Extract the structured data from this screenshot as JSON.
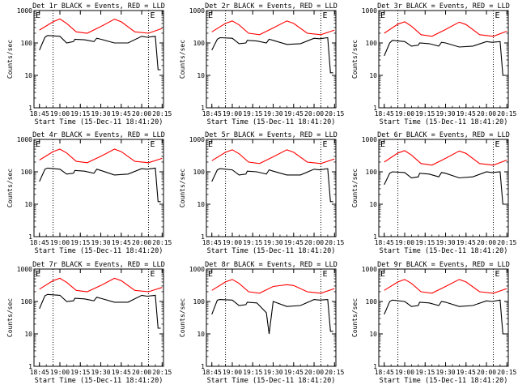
{
  "chart_data": {
    "type": "line",
    "layout": "3x3 small multiples",
    "yscale": "log",
    "ylim": [
      1,
      1000
    ],
    "y_ticks": [
      "1",
      "10",
      "100",
      "1000"
    ],
    "x_ticks": [
      "18:45",
      "19:00",
      "19:15",
      "19:30",
      "19:45",
      "20:00",
      "20:15"
    ],
    "xlabel": "Start Time (15-Dec-11 18:41:20)",
    "ylabel": "Counts/sec",
    "corner_labels": [
      "E",
      "E"
    ],
    "colors": {
      "events": "#000000",
      "lld": "#ff0000"
    },
    "series_names": [
      "Events",
      "LLD"
    ],
    "panels": [
      {
        "title": "Det 1r BLACK = Events, RED = LLD",
        "events": {
          "x": [
            "18:45",
            "18:49",
            "18:51",
            "19:00",
            "19:05",
            "19:10",
            "19:11",
            "19:18",
            "19:25",
            "19:27",
            "19:30",
            "19:40",
            "19:50",
            "20:00",
            "20:04",
            "20:10",
            "20:12",
            "20:14"
          ],
          "y": [
            60,
            150,
            170,
            160,
            100,
            110,
            130,
            125,
            110,
            140,
            130,
            100,
            100,
            160,
            150,
            160,
            15,
            15
          ]
        },
        "lld": {
          "x": [
            "18:45",
            "18:55",
            "19:00",
            "19:05",
            "19:12",
            "19:20",
            "19:30",
            "19:40",
            "19:45",
            "19:55",
            "20:05",
            "20:15"
          ],
          "y": [
            250,
            450,
            550,
            400,
            220,
            200,
            320,
            540,
            450,
            220,
            200,
            280
          ]
        }
      },
      {
        "title": "Det 2r BLACK = Events, RED = LLD",
        "events": {
          "x": [
            "18:45",
            "18:49",
            "18:51",
            "19:00",
            "19:05",
            "19:10",
            "19:11",
            "19:18",
            "19:25",
            "19:27",
            "19:30",
            "19:40",
            "19:50",
            "20:00",
            "20:04",
            "20:10",
            "20:12",
            "20:14"
          ],
          "y": [
            60,
            130,
            145,
            140,
            95,
            100,
            120,
            115,
            100,
            130,
            120,
            90,
            95,
            140,
            135,
            145,
            12,
            12
          ]
        },
        "lld": {
          "x": [
            "18:45",
            "18:55",
            "19:00",
            "19:05",
            "19:12",
            "19:20",
            "19:30",
            "19:40",
            "19:45",
            "19:55",
            "20:05",
            "20:15"
          ],
          "y": [
            220,
            400,
            480,
            360,
            200,
            180,
            290,
            480,
            400,
            200,
            180,
            250
          ]
        }
      },
      {
        "title": "Det 3r BLACK = Events, RED = LLD",
        "events": {
          "x": [
            "18:45",
            "18:49",
            "18:51",
            "19:00",
            "19:05",
            "19:10",
            "19:11",
            "19:18",
            "19:25",
            "19:27",
            "19:30",
            "19:40",
            "19:50",
            "20:00",
            "20:04",
            "20:10",
            "20:12",
            "20:14"
          ],
          "y": [
            40,
            100,
            120,
            110,
            80,
            85,
            100,
            95,
            80,
            105,
            100,
            75,
            80,
            110,
            105,
            110,
            10,
            10
          ]
        },
        "lld": {
          "x": [
            "18:45",
            "18:55",
            "19:00",
            "19:05",
            "19:12",
            "19:20",
            "19:30",
            "19:40",
            "19:45",
            "19:55",
            "20:05",
            "20:15"
          ],
          "y": [
            200,
            380,
            450,
            330,
            180,
            160,
            260,
            440,
            370,
            180,
            160,
            230
          ]
        }
      },
      {
        "title": "Det 4r BLACK = Events, RED = LLD",
        "events": {
          "x": [
            "18:45",
            "18:49",
            "18:51",
            "19:00",
            "19:05",
            "19:10",
            "19:11",
            "19:18",
            "19:25",
            "19:27",
            "19:30",
            "19:40",
            "19:50",
            "20:00",
            "20:04",
            "20:10",
            "20:12",
            "20:14"
          ],
          "y": [
            50,
            120,
            130,
            120,
            85,
            90,
            110,
            105,
            90,
            120,
            110,
            80,
            85,
            125,
            120,
            130,
            12,
            12
          ]
        },
        "lld": {
          "x": [
            "18:45",
            "18:55",
            "19:00",
            "19:05",
            "19:12",
            "19:20",
            "19:30",
            "19:40",
            "19:45",
            "19:55",
            "20:05",
            "20:15"
          ],
          "y": [
            230,
            420,
            500,
            380,
            210,
            190,
            300,
            500,
            420,
            210,
            190,
            260
          ]
        }
      },
      {
        "title": "Det 5r BLACK = Events, RED = LLD",
        "events": {
          "x": [
            "18:45",
            "18:49",
            "18:51",
            "19:00",
            "19:05",
            "19:10",
            "19:11",
            "19:18",
            "19:25",
            "19:27",
            "19:30",
            "19:40",
            "19:50",
            "20:00",
            "20:04",
            "20:10",
            "20:12",
            "20:14"
          ],
          "y": [
            50,
            115,
            125,
            115,
            80,
            85,
            105,
            100,
            85,
            115,
            105,
            80,
            80,
            120,
            115,
            125,
            12,
            12
          ]
        },
        "lld": {
          "x": [
            "18:45",
            "18:55",
            "19:00",
            "19:05",
            "19:12",
            "19:20",
            "19:30",
            "19:40",
            "19:45",
            "19:55",
            "20:05",
            "20:15"
          ],
          "y": [
            220,
            400,
            480,
            360,
            200,
            180,
            290,
            480,
            400,
            200,
            180,
            250
          ]
        }
      },
      {
        "title": "Det 6r BLACK = Events, RED = LLD",
        "events": {
          "x": [
            "18:45",
            "18:49",
            "18:51",
            "19:00",
            "19:05",
            "19:10",
            "19:11",
            "19:18",
            "19:25",
            "19:27",
            "19:30",
            "19:40",
            "19:50",
            "20:00",
            "20:04",
            "20:10",
            "20:12",
            "20:14"
          ],
          "y": [
            40,
            90,
            100,
            95,
            65,
            70,
            90,
            85,
            70,
            95,
            90,
            65,
            70,
            100,
            95,
            100,
            10,
            10
          ]
        },
        "lld": {
          "x": [
            "18:45",
            "18:55",
            "19:00",
            "19:05",
            "19:12",
            "19:20",
            "19:30",
            "19:40",
            "19:45",
            "19:55",
            "20:05",
            "20:15"
          ],
          "y": [
            200,
            380,
            450,
            330,
            180,
            160,
            260,
            440,
            370,
            180,
            160,
            230
          ]
        }
      },
      {
        "title": "Det 7r BLACK = Events, RED = LLD",
        "events": {
          "x": [
            "18:45",
            "18:49",
            "18:51",
            "19:00",
            "19:05",
            "19:10",
            "19:11",
            "19:18",
            "19:25",
            "19:27",
            "19:30",
            "19:40",
            "19:50",
            "20:00",
            "20:04",
            "20:10",
            "20:12",
            "20:14"
          ],
          "y": [
            60,
            150,
            165,
            155,
            100,
            105,
            125,
            120,
            105,
            135,
            125,
            95,
            95,
            155,
            145,
            155,
            15,
            15
          ]
        },
        "lld": {
          "x": [
            "18:45",
            "18:55",
            "19:00",
            "19:05",
            "19:12",
            "19:20",
            "19:30",
            "19:40",
            "19:45",
            "19:55",
            "20:05",
            "20:15"
          ],
          "y": [
            240,
            440,
            520,
            390,
            220,
            200,
            310,
            520,
            440,
            220,
            200,
            270
          ]
        }
      },
      {
        "title": "Det 8r BLACK = Events, RED = LLD",
        "events": {
          "x": [
            "18:45",
            "18:49",
            "18:51",
            "19:00",
            "19:05",
            "19:10",
            "19:11",
            "19:18",
            "19:25",
            "19:27",
            "19:30",
            "19:40",
            "19:50",
            "20:00",
            "20:04",
            "20:10",
            "20:12",
            "20:14"
          ],
          "y": [
            40,
            110,
            115,
            110,
            75,
            80,
            95,
            90,
            45,
            10,
            100,
            70,
            75,
            115,
            110,
            115,
            12,
            12
          ]
        },
        "lld": {
          "x": [
            "18:45",
            "18:55",
            "19:00",
            "19:05",
            "19:12",
            "19:20",
            "19:30",
            "19:40",
            "19:45",
            "19:55",
            "20:05",
            "20:15"
          ],
          "y": [
            220,
            400,
            480,
            360,
            200,
            180,
            290,
            330,
            310,
            200,
            180,
            250
          ]
        }
      },
      {
        "title": "Det 9r BLACK = Events, RED = LLD",
        "events": {
          "x": [
            "18:45",
            "18:49",
            "18:51",
            "19:00",
            "19:05",
            "19:10",
            "19:11",
            "19:18",
            "19:25",
            "19:27",
            "19:30",
            "19:40",
            "19:50",
            "20:00",
            "20:04",
            "20:10",
            "20:12",
            "20:14"
          ],
          "y": [
            40,
            100,
            110,
            100,
            70,
            75,
            95,
            90,
            75,
            100,
            95,
            70,
            75,
            105,
            100,
            110,
            10,
            10
          ]
        },
        "lld": {
          "x": [
            "18:45",
            "18:55",
            "19:00",
            "19:05",
            "19:12",
            "19:20",
            "19:30",
            "19:40",
            "19:45",
            "19:55",
            "20:05",
            "20:15"
          ],
          "y": [
            220,
            400,
            480,
            360,
            200,
            180,
            290,
            480,
            400,
            200,
            180,
            250
          ]
        }
      }
    ]
  }
}
